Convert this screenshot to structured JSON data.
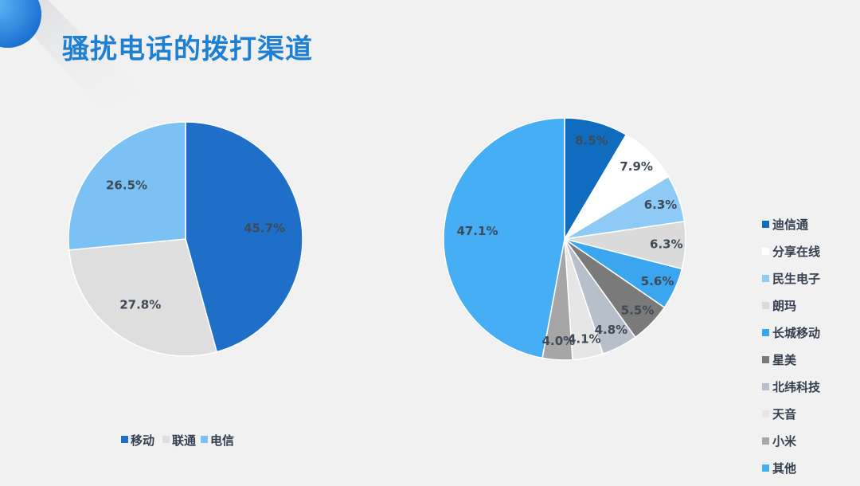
{
  "title": "骚扰电话的拨打渠道",
  "chart_data": [
    {
      "type": "pie",
      "categories": [
        "移动",
        "联通",
        "电信"
      ],
      "values": [
        45.7,
        27.8,
        26.5
      ],
      "labels": [
        "45.7%",
        "27.8%",
        "26.5%"
      ],
      "colors": [
        "#1f6fc8",
        "#dedede",
        "#7cc1f4"
      ],
      "legend_position": "bottom"
    },
    {
      "type": "pie",
      "categories": [
        "迪信通",
        "分享在线",
        "民生电子",
        "朗玛",
        "长城移动",
        "星美",
        "北纬科技",
        "天音",
        "小米",
        "其他"
      ],
      "values": [
        8.5,
        7.9,
        6.3,
        6.3,
        5.6,
        5.5,
        4.8,
        4.1,
        4.0,
        47.1
      ],
      "labels": [
        "8.5%",
        "7.9%",
        "6.3%",
        "6.3%",
        "5.6%",
        "5.5%",
        "4.8%",
        "4.1%",
        "4.0%",
        "47.1%"
      ],
      "colors": [
        "#0f6cbf",
        "#ffffff",
        "#8dcaf6",
        "#dadada",
        "#3aa6f0",
        "#7a7a7a",
        "#b7bfca",
        "#e6e6e6",
        "#a6a6a6",
        "#46aef5"
      ],
      "legend_position": "right"
    }
  ]
}
